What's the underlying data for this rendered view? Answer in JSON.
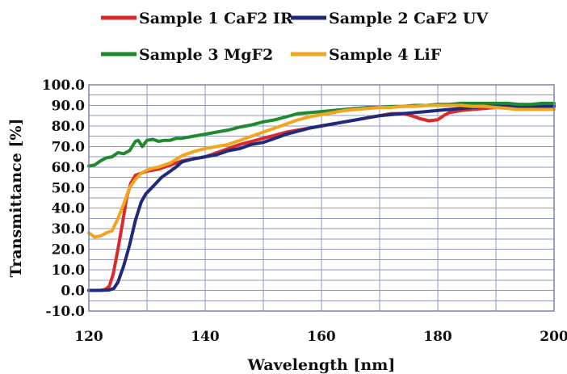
{
  "chart_data": {
    "type": "line",
    "title": "",
    "xlabel": "Wavelength [nm]",
    "ylabel": "Transmittance [%]",
    "xlim": [
      120,
      200
    ],
    "ylim": [
      -10,
      100
    ],
    "x_ticks": [
      120,
      140,
      160,
      180,
      200
    ],
    "y_ticks": [
      -10,
      0,
      10,
      20,
      30,
      40,
      50,
      60,
      70,
      80,
      90,
      100
    ],
    "x_tick_labels": [
      "120",
      "140",
      "160",
      "180",
      "200"
    ],
    "y_tick_labels": [
      "-10.0",
      "0.0",
      "10.0",
      "20.0",
      "30.0",
      "40.0",
      "50.0",
      "60.0",
      "70.0",
      "80.0",
      "90.0",
      "100.0"
    ],
    "grid": true,
    "legend_position": "top",
    "series": [
      {
        "name": "Sample 1 CaF2 IR",
        "color": "#d92b2b",
        "points": [
          [
            120,
            0
          ],
          [
            121,
            0
          ],
          [
            122,
            0
          ],
          [
            122.8,
            0.5
          ],
          [
            123.5,
            2
          ],
          [
            124.2,
            8
          ],
          [
            125,
            20
          ],
          [
            125.8,
            33
          ],
          [
            126.5,
            45
          ],
          [
            127.2,
            52
          ],
          [
            128,
            56
          ],
          [
            129,
            57
          ],
          [
            130,
            58
          ],
          [
            132,
            59
          ],
          [
            134,
            61
          ],
          [
            136,
            63
          ],
          [
            138,
            64
          ],
          [
            140,
            65
          ],
          [
            142,
            67
          ],
          [
            144,
            69
          ],
          [
            146,
            71
          ],
          [
            148,
            72.5
          ],
          [
            150,
            74
          ],
          [
            152,
            75.5
          ],
          [
            154,
            77
          ],
          [
            156,
            78
          ],
          [
            158,
            79
          ],
          [
            160,
            80
          ],
          [
            162,
            81
          ],
          [
            164,
            82
          ],
          [
            166,
            83
          ],
          [
            168,
            84
          ],
          [
            170,
            85
          ],
          [
            172,
            86
          ],
          [
            174,
            86
          ],
          [
            175.5,
            85
          ],
          [
            177,
            83.5
          ],
          [
            178.5,
            82.5
          ],
          [
            180,
            83
          ],
          [
            181,
            85
          ],
          [
            182,
            86.5
          ],
          [
            184,
            87.5
          ],
          [
            186,
            88
          ],
          [
            188,
            88.5
          ],
          [
            190,
            89
          ],
          [
            192,
            89.5
          ],
          [
            194,
            89.5
          ],
          [
            196,
            89
          ],
          [
            198,
            89.5
          ],
          [
            200,
            90
          ]
        ]
      },
      {
        "name": "Sample 2 CaF2 UV",
        "color": "#1f2a7a",
        "points": [
          [
            120,
            0
          ],
          [
            122,
            0
          ],
          [
            123.5,
            0.2
          ],
          [
            124.3,
            1
          ],
          [
            125,
            4
          ],
          [
            126,
            12
          ],
          [
            127,
            22
          ],
          [
            128,
            34
          ],
          [
            129,
            43
          ],
          [
            129.8,
            47
          ],
          [
            130.5,
            49
          ],
          [
            131.5,
            52
          ],
          [
            132.5,
            55
          ],
          [
            133.5,
            57
          ],
          [
            135,
            60
          ],
          [
            136,
            62.5
          ],
          [
            138,
            64
          ],
          [
            140,
            65
          ],
          [
            142,
            66
          ],
          [
            144,
            68
          ],
          [
            146,
            69
          ],
          [
            148,
            71
          ],
          [
            150,
            72
          ],
          [
            152,
            74
          ],
          [
            154,
            76
          ],
          [
            156,
            77.5
          ],
          [
            158,
            79
          ],
          [
            160,
            80
          ],
          [
            162,
            81
          ],
          [
            164,
            82
          ],
          [
            166,
            83
          ],
          [
            168,
            84
          ],
          [
            170,
            85
          ],
          [
            172,
            85.5
          ],
          [
            174,
            86
          ],
          [
            176,
            86.5
          ],
          [
            178,
            87
          ],
          [
            180,
            87.5
          ],
          [
            182,
            88
          ],
          [
            184,
            88.5
          ],
          [
            186,
            89
          ],
          [
            188,
            89.5
          ],
          [
            190,
            90
          ],
          [
            192,
            90
          ],
          [
            194,
            89.5
          ],
          [
            196,
            89.5
          ],
          [
            198,
            89.5
          ],
          [
            200,
            89.5
          ]
        ]
      },
      {
        "name": "Sample 3 MgF2",
        "color": "#1e8a2e",
        "points": [
          [
            120,
            60.5
          ],
          [
            121,
            61
          ],
          [
            122,
            63
          ],
          [
            123,
            64.5
          ],
          [
            124,
            65
          ],
          [
            125,
            67
          ],
          [
            126,
            66.5
          ],
          [
            127,
            68
          ],
          [
            128,
            72.5
          ],
          [
            128.5,
            73
          ],
          [
            129.2,
            70
          ],
          [
            130,
            73
          ],
          [
            131,
            73.5
          ],
          [
            132,
            72.5
          ],
          [
            133,
            73
          ],
          [
            134,
            73
          ],
          [
            135,
            74
          ],
          [
            136,
            74
          ],
          [
            138,
            75
          ],
          [
            140,
            76
          ],
          [
            142,
            77
          ],
          [
            144,
            78
          ],
          [
            146,
            79.5
          ],
          [
            148,
            80.5
          ],
          [
            150,
            82
          ],
          [
            152,
            83
          ],
          [
            154,
            84.5
          ],
          [
            156,
            86
          ],
          [
            158,
            86.5
          ],
          [
            160,
            87
          ],
          [
            162,
            87.5
          ],
          [
            164,
            88
          ],
          [
            166,
            88.5
          ],
          [
            168,
            89
          ],
          [
            170,
            89
          ],
          [
            172,
            89.5
          ],
          [
            174,
            89.5
          ],
          [
            176,
            90
          ],
          [
            178,
            90
          ],
          [
            180,
            90.5
          ],
          [
            182,
            90.5
          ],
          [
            184,
            91
          ],
          [
            186,
            91
          ],
          [
            188,
            91
          ],
          [
            190,
            91
          ],
          [
            192,
            91
          ],
          [
            194,
            90.5
          ],
          [
            196,
            90.5
          ],
          [
            198,
            91
          ],
          [
            200,
            91
          ]
        ]
      },
      {
        "name": "Sample 4 LiF",
        "color": "#f3a51f",
        "points": [
          [
            120,
            28
          ],
          [
            121,
            26
          ],
          [
            122,
            26.5
          ],
          [
            123,
            28
          ],
          [
            124,
            29
          ],
          [
            125,
            35
          ],
          [
            126,
            42
          ],
          [
            127,
            50
          ],
          [
            128,
            54
          ],
          [
            129,
            57
          ],
          [
            130,
            58.5
          ],
          [
            131,
            59.5
          ],
          [
            132,
            60
          ],
          [
            134,
            62
          ],
          [
            136,
            65.5
          ],
          [
            138,
            67.5
          ],
          [
            140,
            69
          ],
          [
            142,
            70
          ],
          [
            144,
            71
          ],
          [
            146,
            73
          ],
          [
            148,
            75
          ],
          [
            150,
            77
          ],
          [
            152,
            79
          ],
          [
            154,
            81
          ],
          [
            156,
            83
          ],
          [
            158,
            84.5
          ],
          [
            160,
            85.5
          ],
          [
            162,
            86.5
          ],
          [
            164,
            87.5
          ],
          [
            166,
            88
          ],
          [
            168,
            88.5
          ],
          [
            170,
            89
          ],
          [
            172,
            89
          ],
          [
            174,
            89.5
          ],
          [
            176,
            89.5
          ],
          [
            178,
            90
          ],
          [
            180,
            90
          ],
          [
            182,
            90
          ],
          [
            184,
            90
          ],
          [
            186,
            89.5
          ],
          [
            188,
            89.5
          ],
          [
            190,
            89
          ],
          [
            192,
            88.5
          ],
          [
            194,
            88
          ],
          [
            196,
            88
          ],
          [
            198,
            88
          ],
          [
            200,
            88
          ]
        ]
      }
    ]
  }
}
